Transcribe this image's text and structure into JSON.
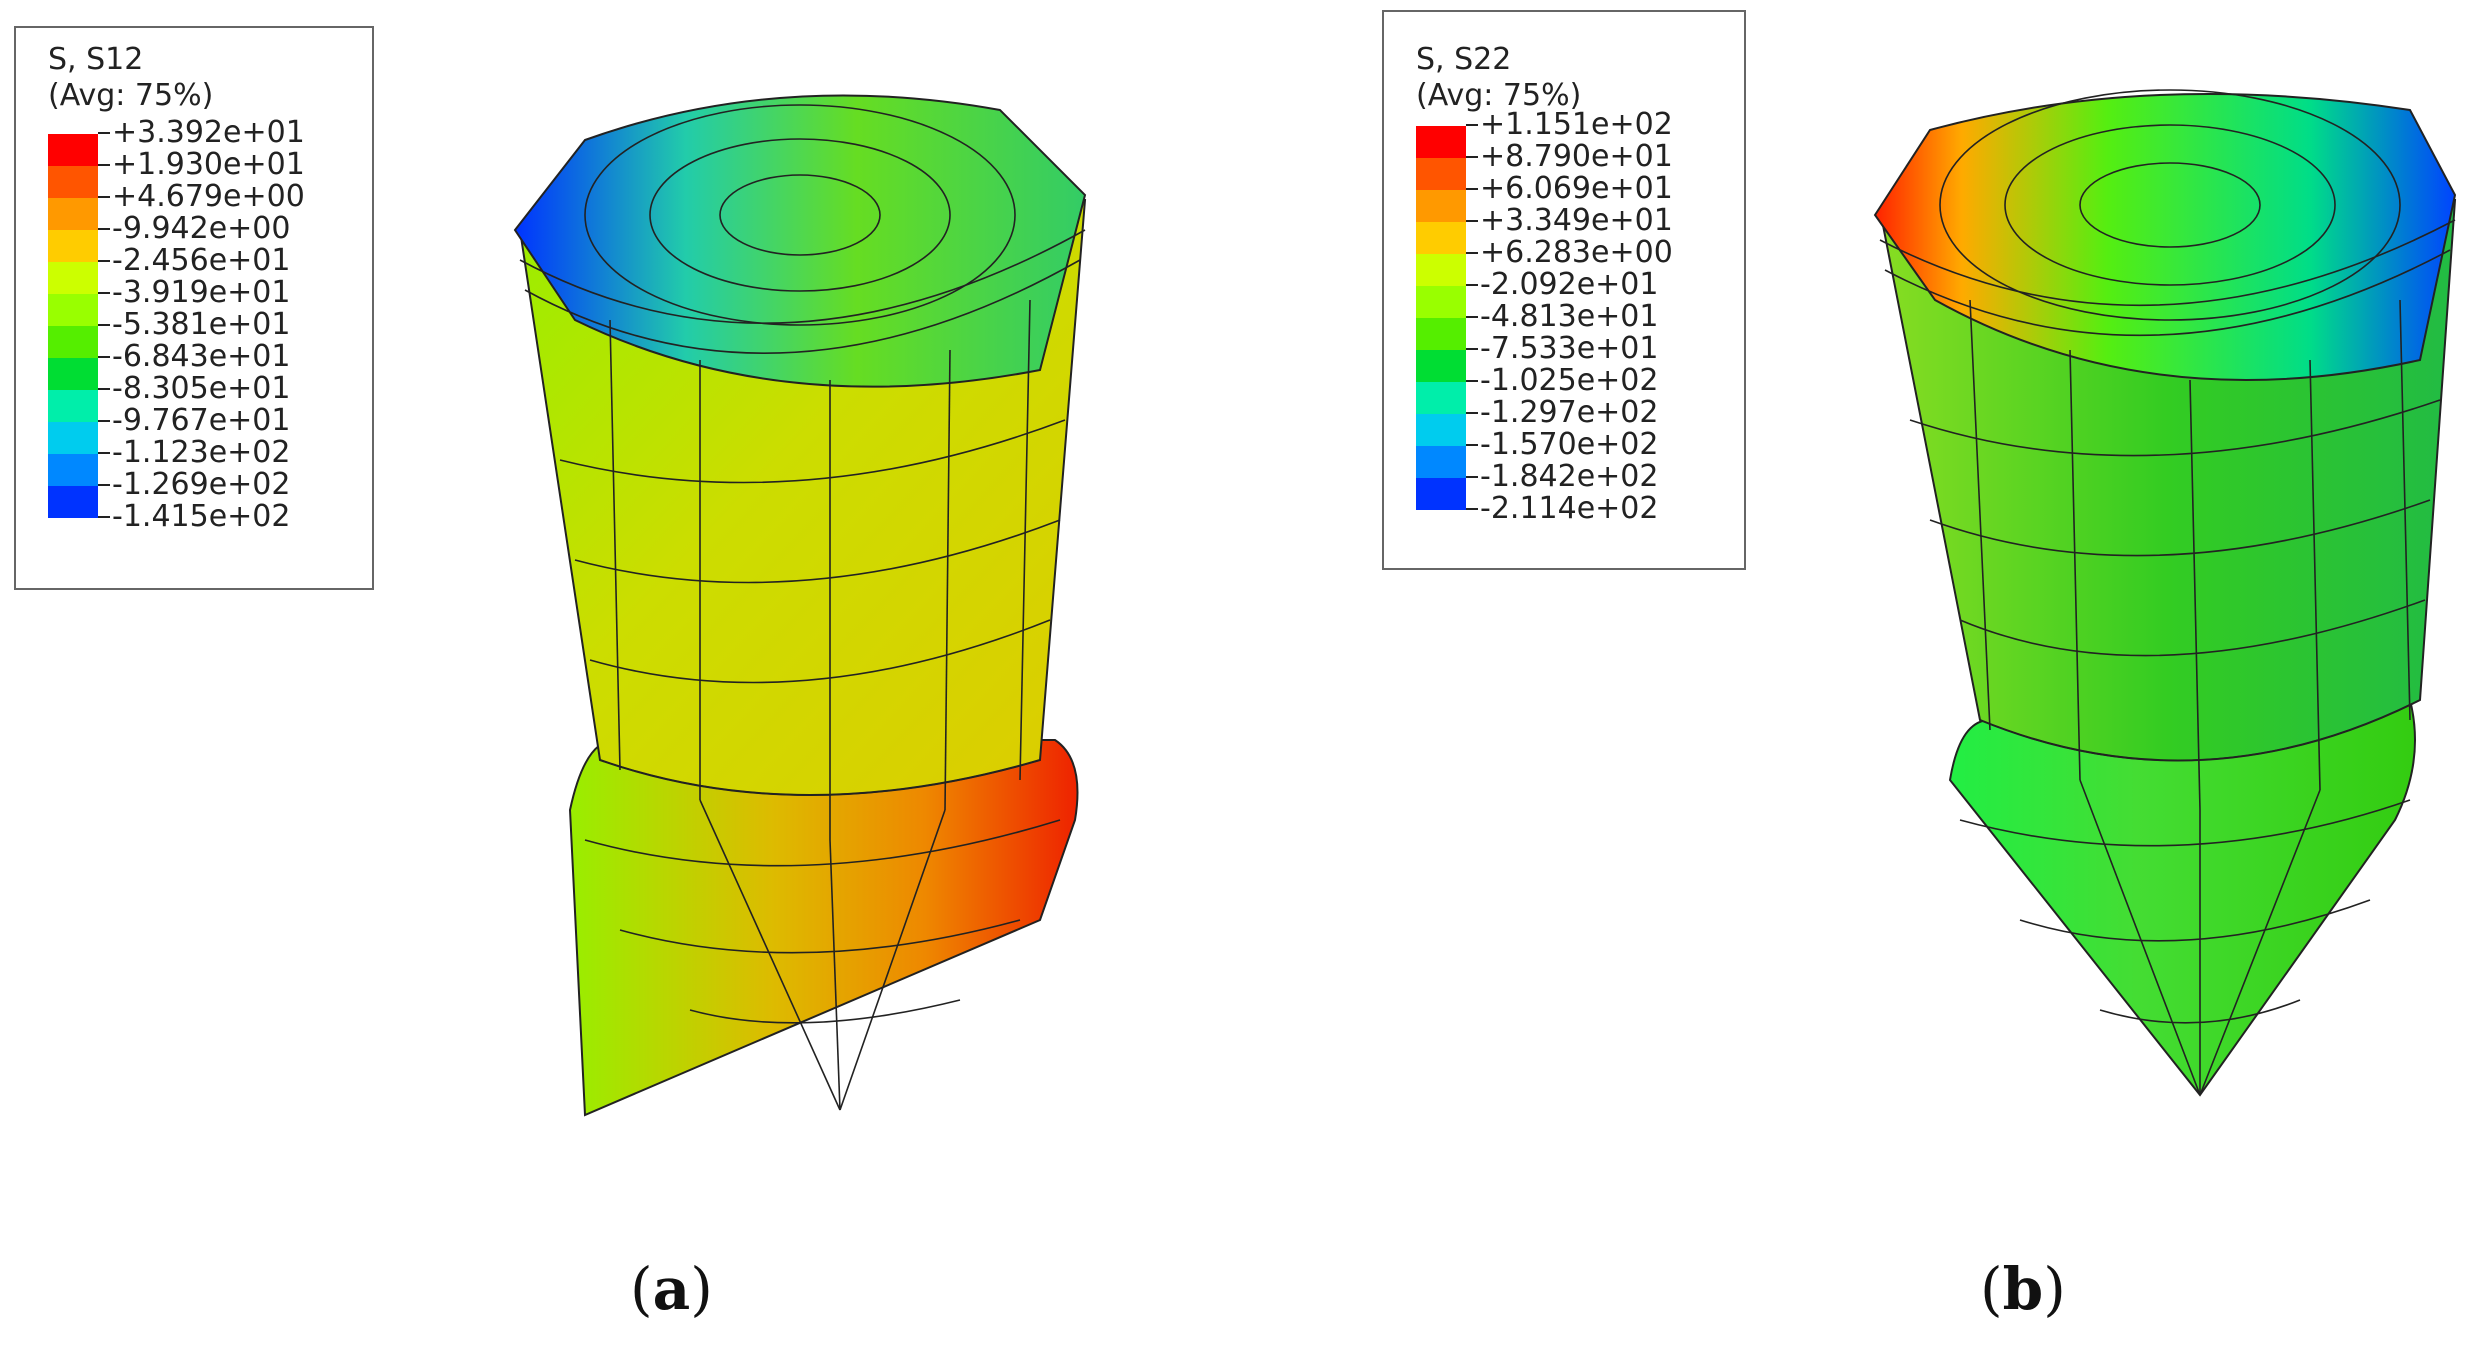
{
  "panels": [
    {
      "id": "a",
      "legend_title_1": "S, S12",
      "legend_title_2": "(Avg: 75%)",
      "levels": [
        "+3.392e+01",
        "+1.930e+01",
        "+4.679e+00",
        "-9.942e+00",
        "-2.456e+01",
        "-3.919e+01",
        "-5.381e+01",
        "-6.843e+01",
        "-8.305e+01",
        "-9.767e+01",
        "-1.123e+02",
        "-1.269e+02",
        "-1.415e+02"
      ],
      "caption_open": "(",
      "caption_letter": "a",
      "caption_close": ")"
    },
    {
      "id": "b",
      "legend_title_1": "S, S22",
      "legend_title_2": "(Avg: 75%)",
      "levels": [
        "+1.151e+02",
        "+8.790e+01",
        "+6.069e+01",
        "+3.349e+01",
        "+6.283e+00",
        "-2.092e+01",
        "-4.813e+01",
        "-7.533e+01",
        "-1.025e+02",
        "-1.297e+02",
        "-1.570e+02",
        "-1.842e+02",
        "-2.114e+02"
      ],
      "caption_open": "(",
      "caption_letter": "b",
      "caption_close": ")"
    }
  ],
  "colormap": [
    "#ff0000",
    "#ff5500",
    "#ff9900",
    "#ffcc00",
    "#ccff00",
    "#99ff00",
    "#55ee00",
    "#00dd33",
    "#00eeaa",
    "#00ccee",
    "#0088ff",
    "#0033ff"
  ]
}
